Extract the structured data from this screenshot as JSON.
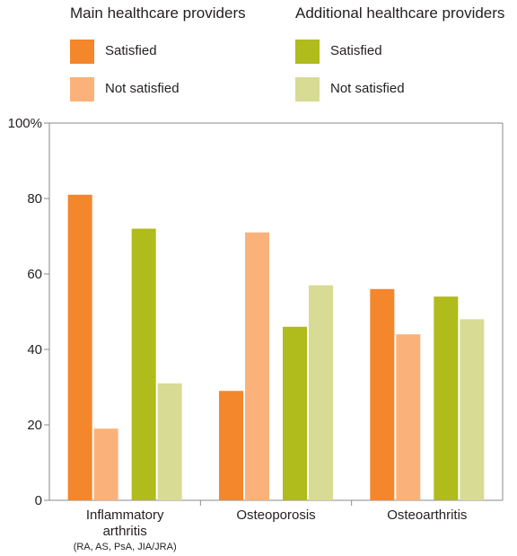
{
  "legend": {
    "groups": [
      {
        "title": "Main healthcare providers",
        "items": [
          {
            "label": "Satisfied",
            "color": "#f4862b"
          },
          {
            "label": "Not satisfied",
            "color": "#fbb27a"
          }
        ]
      },
      {
        "title": "Additional healthcare providers",
        "items": [
          {
            "label": "Satisfied",
            "color": "#b0bb1c"
          },
          {
            "label": "Not satisfied",
            "color": "#d7db94"
          }
        ]
      }
    ]
  },
  "chart_data": {
    "type": "bar",
    "categories": [
      {
        "label": "Inflammatory",
        "label2": "arthritis",
        "sublabel": "(RA, AS, PsA, JIA/JRA)"
      },
      {
        "label": "Osteoporosis",
        "label2": "",
        "sublabel": ""
      },
      {
        "label": "Osteoarthritis",
        "label2": "",
        "sublabel": ""
      }
    ],
    "series": [
      {
        "name": "Main healthcare providers – Satisfied",
        "color": "#f4862b",
        "values": [
          81,
          29,
          56
        ]
      },
      {
        "name": "Main healthcare providers – Not satisfied",
        "color": "#fbb27a",
        "values": [
          19,
          71,
          44
        ]
      },
      {
        "name": "Additional healthcare providers – Satisfied",
        "color": "#b0bb1c",
        "values": [
          72,
          46,
          54
        ]
      },
      {
        "name": "Additional healthcare providers – Not satisfied",
        "color": "#d7db94",
        "values": [
          31,
          57,
          48
        ]
      }
    ],
    "ylim": [
      0,
      100
    ],
    "yticks": [
      {
        "value": 0,
        "label": "0"
      },
      {
        "value": 20,
        "label": "20"
      },
      {
        "value": 40,
        "label": "40"
      },
      {
        "value": 60,
        "label": "60"
      },
      {
        "value": 80,
        "label": "80"
      },
      {
        "value": 100,
        "label": "100%"
      }
    ],
    "grid": false,
    "legend_position": "top"
  }
}
